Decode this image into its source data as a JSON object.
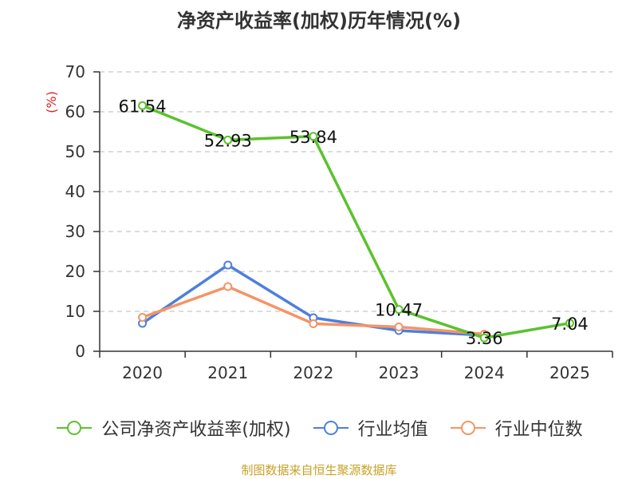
{
  "chart_data": {
    "type": "line",
    "title": "净资产收益率(加权)历年情况(%)",
    "ylabel": "(%)",
    "xlabel": "",
    "categories": [
      "2020",
      "2021",
      "2022",
      "2023",
      "2024",
      "2025"
    ],
    "ylim": [
      0,
      70
    ],
    "yticks": [
      0,
      10,
      20,
      30,
      40,
      50,
      60,
      70
    ],
    "grid": true,
    "legend_position": "bottom",
    "series": [
      {
        "name": "公司净资产收益率(加权)",
        "color": "#5bc22e",
        "values": [
          61.54,
          52.93,
          53.84,
          10.47,
          3.36,
          7.04
        ],
        "labels": [
          "61.54",
          "52.93",
          "53.84",
          "10.47",
          "3.36",
          "7.04"
        ]
      },
      {
        "name": "行业均值",
        "color": "#4e7fdc",
        "values": [
          7.0,
          21.6,
          8.4,
          5.2,
          4.0,
          null
        ]
      },
      {
        "name": "行业中位数",
        "color": "#f59466",
        "values": [
          8.5,
          16.2,
          6.9,
          6.1,
          4.3,
          null
        ]
      }
    ]
  },
  "footer": {
    "source": "制图数据来自恒生聚源数据库"
  }
}
